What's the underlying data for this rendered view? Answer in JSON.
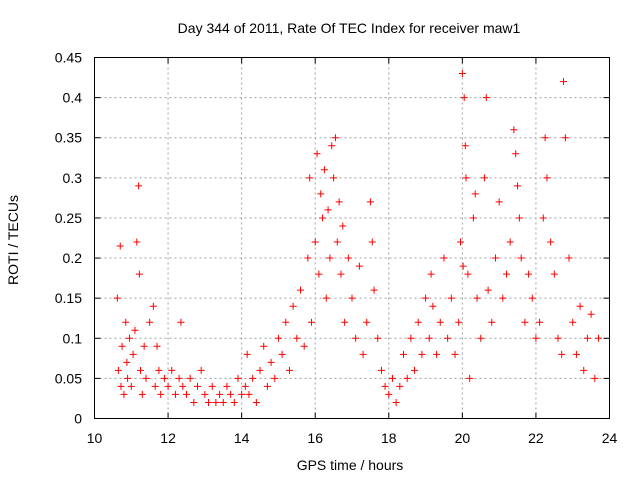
{
  "chart_data": {
    "type": "scatter",
    "title": "Day 344 of 2011, Rate Of TEC Index for receiver maw1",
    "xlabel": "GPS time / hours",
    "ylabel": "ROTI / TECUs",
    "xlim": [
      10,
      24
    ],
    "ylim": [
      0,
      0.45
    ],
    "x_ticks": [
      "10",
      "12",
      "14",
      "16",
      "18",
      "20",
      "22",
      "24"
    ],
    "y_ticks": [
      "0",
      "0.05",
      "0.1",
      "0.15",
      "0.2",
      "0.25",
      "0.3",
      "0.35",
      "0.4",
      "0.45"
    ],
    "grid": true,
    "marker": "plus",
    "color": "#ff0000",
    "series": [
      {
        "name": "ROTI",
        "x": [
          10.62,
          10.65,
          10.7,
          10.72,
          10.75,
          10.8,
          10.85,
          10.88,
          10.9,
          10.95,
          11.0,
          11.05,
          11.1,
          11.15,
          11.2,
          11.22,
          11.25,
          11.3,
          11.35,
          11.4,
          11.5,
          11.6,
          11.65,
          11.7,
          11.75,
          11.8,
          11.9,
          12.0,
          12.1,
          12.2,
          12.3,
          12.35,
          12.4,
          12.5,
          12.6,
          12.7,
          12.8,
          12.9,
          13.0,
          13.1,
          13.2,
          13.3,
          13.4,
          13.5,
          13.6,
          13.7,
          13.8,
          13.9,
          14.0,
          14.1,
          14.15,
          14.2,
          14.3,
          14.4,
          14.5,
          14.6,
          14.7,
          14.8,
          14.9,
          15.0,
          15.1,
          15.2,
          15.3,
          15.4,
          15.5,
          15.6,
          15.7,
          15.8,
          15.85,
          15.9,
          16.0,
          16.05,
          16.1,
          16.15,
          16.2,
          16.25,
          16.3,
          16.35,
          16.4,
          16.45,
          16.5,
          16.55,
          16.6,
          16.65,
          16.7,
          16.75,
          16.8,
          16.9,
          17.0,
          17.1,
          17.2,
          17.3,
          17.4,
          17.5,
          17.55,
          17.6,
          17.7,
          17.8,
          17.9,
          18.0,
          18.1,
          18.2,
          18.3,
          18.4,
          18.5,
          18.6,
          18.7,
          18.8,
          18.9,
          19.0,
          19.1,
          19.15,
          19.2,
          19.3,
          19.4,
          19.5,
          19.6,
          19.7,
          19.8,
          19.9,
          19.95,
          20.0,
          20.02,
          20.05,
          20.08,
          20.1,
          20.15,
          20.2,
          20.3,
          20.35,
          20.4,
          20.5,
          20.6,
          20.65,
          20.7,
          20.8,
          20.9,
          21.0,
          21.1,
          21.2,
          21.3,
          21.4,
          21.45,
          21.5,
          21.55,
          21.6,
          21.7,
          21.8,
          21.9,
          22.0,
          22.1,
          22.2,
          22.25,
          22.3,
          22.4,
          22.5,
          22.6,
          22.7,
          22.75,
          22.8,
          22.9,
          23.0,
          23.1,
          23.2,
          23.3,
          23.4,
          23.5,
          23.6,
          23.7
        ],
        "y": [
          0.15,
          0.06,
          0.215,
          0.04,
          0.09,
          0.03,
          0.12,
          0.07,
          0.05,
          0.1,
          0.04,
          0.08,
          0.11,
          0.22,
          0.29,
          0.18,
          0.06,
          0.03,
          0.09,
          0.05,
          0.12,
          0.14,
          0.04,
          0.09,
          0.06,
          0.03,
          0.05,
          0.04,
          0.06,
          0.03,
          0.05,
          0.12,
          0.04,
          0.03,
          0.05,
          0.02,
          0.04,
          0.06,
          0.03,
          0.02,
          0.04,
          0.02,
          0.03,
          0.02,
          0.04,
          0.03,
          0.02,
          0.05,
          0.03,
          0.04,
          0.08,
          0.03,
          0.05,
          0.02,
          0.06,
          0.09,
          0.04,
          0.07,
          0.05,
          0.1,
          0.08,
          0.12,
          0.06,
          0.14,
          0.1,
          0.16,
          0.09,
          0.2,
          0.3,
          0.12,
          0.22,
          0.33,
          0.18,
          0.28,
          0.25,
          0.31,
          0.15,
          0.26,
          0.2,
          0.34,
          0.3,
          0.35,
          0.22,
          0.27,
          0.18,
          0.24,
          0.12,
          0.2,
          0.15,
          0.1,
          0.19,
          0.08,
          0.12,
          0.27,
          0.22,
          0.16,
          0.1,
          0.06,
          0.04,
          0.03,
          0.05,
          0.02,
          0.04,
          0.08,
          0.05,
          0.1,
          0.06,
          0.12,
          0.08,
          0.15,
          0.1,
          0.18,
          0.14,
          0.08,
          0.12,
          0.2,
          0.1,
          0.15,
          0.08,
          0.12,
          0.22,
          0.43,
          0.19,
          0.4,
          0.34,
          0.3,
          0.18,
          0.05,
          0.25,
          0.28,
          0.15,
          0.1,
          0.3,
          0.4,
          0.16,
          0.12,
          0.2,
          0.27,
          0.15,
          0.18,
          0.22,
          0.36,
          0.33,
          0.29,
          0.25,
          0.2,
          0.12,
          0.18,
          0.15,
          0.1,
          0.12,
          0.25,
          0.35,
          0.3,
          0.22,
          0.18,
          0.1,
          0.08,
          0.42,
          0.35,
          0.2,
          0.12,
          0.08,
          0.14,
          0.06,
          0.1,
          0.13,
          0.05,
          0.1
        ]
      }
    ]
  }
}
